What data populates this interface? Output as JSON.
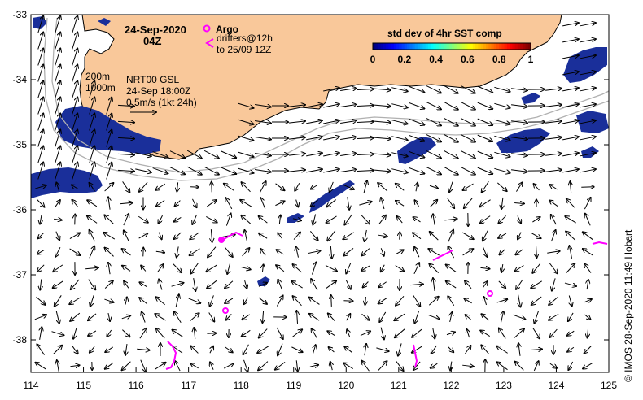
{
  "header": {
    "date": "24-Sep-2020",
    "time": "04Z"
  },
  "legend": {
    "argo_label": "Argo",
    "drifters_label": "drifters@12h",
    "drifters_period": "to 25/09 12Z",
    "argo_color": "#ff00ff",
    "drifter_color": "#ff00ff"
  },
  "isobaths": {
    "shallow": "200m",
    "deep": "1000m"
  },
  "currents": {
    "source": "NRT00 GSL",
    "valid": "24-Sep 18:00Z",
    "scale_label": "0.5m/s (1kt 24h)"
  },
  "colorbar": {
    "title": "std dev of 4hr SST comp",
    "ticks": [
      "0",
      "0.2",
      "0.4",
      "0.6",
      "0.8",
      "1"
    ],
    "colors": [
      "#00007f",
      "#0000ff",
      "#007fff",
      "#00ffff",
      "#7fff7f",
      "#ffff00",
      "#ff7f00",
      "#ff0000",
      "#7f0000"
    ]
  },
  "axes": {
    "x_ticks": [
      "114",
      "115",
      "116",
      "117",
      "118",
      "119",
      "120",
      "121",
      "122",
      "123",
      "124",
      "125"
    ],
    "y_ticks": [
      "-33",
      "-34",
      "-35",
      "-36",
      "-37",
      "-38"
    ],
    "xlim": [
      114,
      125
    ],
    "ylim": [
      -38.5,
      -33
    ]
  },
  "colors": {
    "land": "#f9c89a",
    "sst_blue": "#1a2f9a",
    "isobath": "#b0b0b0"
  },
  "credit": "© IMOS 28-Sep-2020 11:49 Hobart"
}
